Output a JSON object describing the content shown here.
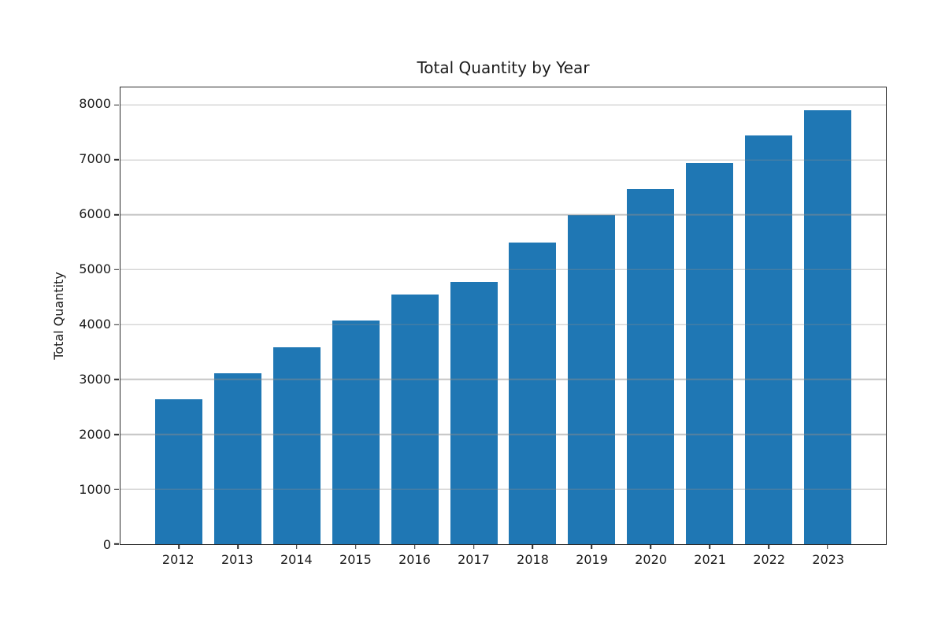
{
  "chart_data": {
    "type": "bar",
    "title": "Total Quantity by Year",
    "xlabel": "",
    "ylabel": "Total Quantity",
    "categories": [
      "2012",
      "2013",
      "2014",
      "2015",
      "2016",
      "2017",
      "2018",
      "2019",
      "2020",
      "2021",
      "2022",
      "2023"
    ],
    "values": [
      2640,
      3120,
      3590,
      4080,
      4550,
      4770,
      5500,
      5990,
      6470,
      6950,
      7440,
      7900
    ],
    "yticks": [
      0,
      1000,
      2000,
      3000,
      4000,
      5000,
      6000,
      7000,
      8000
    ],
    "ylim": [
      0,
      8320
    ],
    "xlim_units": [
      -0.99,
      11.99
    ],
    "bar_width_units": 0.8,
    "grid": "y-only, drawn above bars",
    "legend": "none",
    "colors": {
      "bar": "#1f77b4",
      "grid_over_plot": "rgba(140,140,140,0.5)",
      "spine": "#2b2b2b",
      "text": "#1a1a1a",
      "background": "#ffffff"
    }
  }
}
